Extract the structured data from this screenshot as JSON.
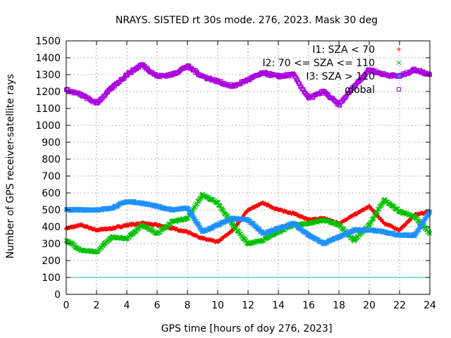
{
  "chart_data": {
    "type": "scatter",
    "title": "NRAYS. SISTED rt 30s mode. 276, 2023. Mask 30 deg",
    "xlabel": "GPS time [hours of doy 276, 2023]",
    "ylabel": "Number of GPS receiver-satellite rays",
    "xlim": [
      0,
      24
    ],
    "ylim": [
      0,
      1500
    ],
    "x_ticks": [
      0,
      2,
      4,
      6,
      8,
      10,
      12,
      14,
      16,
      18,
      20,
      22,
      24
    ],
    "y_ticks": [
      0,
      100,
      200,
      300,
      400,
      500,
      600,
      700,
      800,
      900,
      1000,
      1100,
      1200,
      1300,
      1400,
      1500
    ],
    "grid": true,
    "legend_position": "top-right",
    "series": [
      {
        "name": "I1: SZA < 70",
        "color": "#ff0000",
        "marker": "plus",
        "x": [
          0,
          1,
          2,
          3,
          4,
          5,
          6,
          7,
          8,
          9,
          10,
          11,
          12,
          13,
          14,
          15,
          16,
          17,
          18,
          19,
          20,
          21,
          22,
          23,
          24
        ],
        "y": [
          390,
          410,
          380,
          390,
          410,
          420,
          410,
          390,
          370,
          330,
          310,
          380,
          500,
          540,
          500,
          480,
          440,
          450,
          420,
          470,
          520,
          420,
          380,
          470,
          490
        ]
      },
      {
        "name": "I2: 70 <= SZA <= 110",
        "color": "#00c000",
        "marker": "cross",
        "x": [
          0,
          1,
          2,
          3,
          4,
          5,
          6,
          7,
          8,
          9,
          10,
          11,
          12,
          13,
          14,
          15,
          16,
          17,
          18,
          19,
          20,
          21,
          22,
          23,
          24
        ],
        "y": [
          320,
          260,
          250,
          340,
          330,
          410,
          360,
          430,
          450,
          590,
          540,
          410,
          300,
          320,
          370,
          410,
          420,
          440,
          410,
          320,
          410,
          560,
          490,
          460,
          360
        ]
      },
      {
        "name": "I3: SZA > 110",
        "color": "#1e90ff",
        "marker": "star",
        "x": [
          0,
          1,
          2,
          3,
          4,
          5,
          6,
          7,
          8,
          9,
          10,
          11,
          12,
          13,
          14,
          15,
          16,
          17,
          18,
          19,
          20,
          21,
          22,
          23,
          24
        ],
        "y": [
          500,
          500,
          500,
          510,
          550,
          540,
          520,
          500,
          510,
          370,
          410,
          450,
          440,
          360,
          390,
          420,
          350,
          300,
          340,
          380,
          380,
          370,
          350,
          350,
          490
        ]
      },
      {
        "name": "global",
        "color": "#aa00dd",
        "marker": "square",
        "x": [
          0,
          1,
          2,
          3,
          4,
          5,
          6,
          7,
          8,
          9,
          10,
          11,
          12,
          13,
          14,
          15,
          16,
          17,
          18,
          19,
          20,
          21,
          22,
          23,
          24
        ],
        "y": [
          1210,
          1180,
          1130,
          1220,
          1300,
          1360,
          1290,
          1300,
          1350,
          1290,
          1260,
          1230,
          1270,
          1310,
          1290,
          1300,
          1160,
          1200,
          1120,
          1230,
          1330,
          1300,
          1290,
          1330,
          1300
        ]
      }
    ],
    "threshold_line": {
      "y": 100,
      "color": "#00c0c0"
    }
  }
}
